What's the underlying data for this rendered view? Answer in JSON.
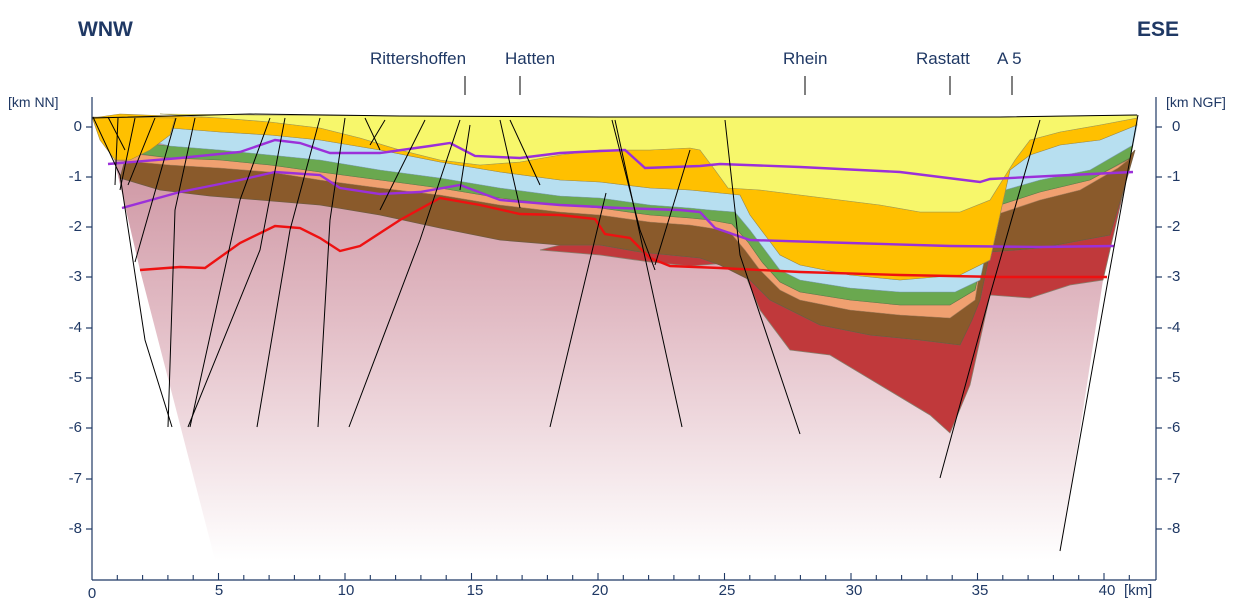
{
  "directions": {
    "left": "WNW",
    "right": "ESE"
  },
  "places": [
    {
      "name": "Rittershoffen",
      "km": 14.7
    },
    {
      "name": "Hatten",
      "km": 16.9
    },
    {
      "name": "Rhein",
      "km": 28.0
    },
    {
      "name": "Rastatt",
      "km": 33.8
    },
    {
      "name": "A 5",
      "km": 36.4
    }
  ],
  "axes": {
    "left_unit": "[km NN]",
    "right_unit": "[km NGF]",
    "x_unit": "[km]",
    "x_ticks": [
      "0",
      "5",
      "10",
      "15",
      "20",
      "25",
      "30",
      "35",
      "40"
    ],
    "y_ticks_left": [
      "0",
      "-1",
      "-2",
      "-3",
      "-4",
      "-5",
      "-6",
      "-7",
      "-8"
    ],
    "y_ticks_right": [
      "0",
      "-1",
      "-2",
      "-3",
      "-4",
      "-5",
      "-6",
      "-7",
      "-8"
    ],
    "x_range_km": [
      0,
      41
    ],
    "depth_range_km": [
      0,
      -9
    ]
  },
  "colors": {
    "text": "#1f3864",
    "quaternary": "#f7f76b",
    "tertiary": "#ffc000",
    "layer_lightblue": "#b7dff0",
    "layer_green": "#6aa84f",
    "layer_salmon": "#f0a070",
    "layer_brown": "#8a5a2b",
    "layer_red": "#c0393b",
    "basement": "#d8a8b2",
    "horizon_purple": "#9b30d9",
    "horizon_red": "#ee1111",
    "fault": "#000000"
  }
}
